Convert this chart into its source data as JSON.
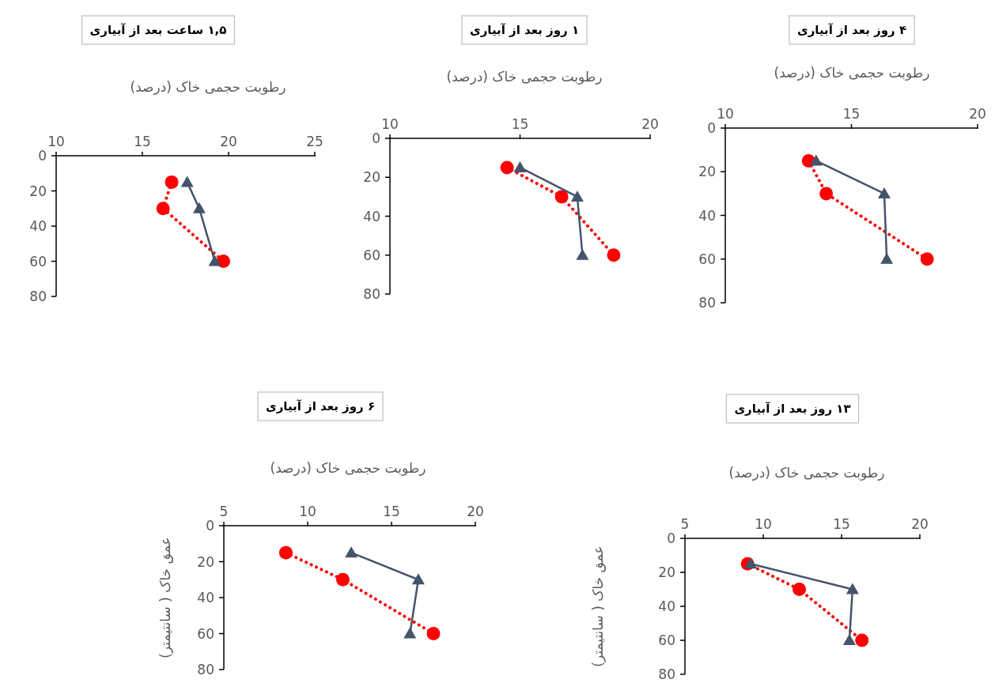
{
  "chart_data": [
    {
      "type": "line",
      "title": "۱,۵ ساعت بعد از آبیاری",
      "xlabel": "رطوبت حجمی خاک (درصد)",
      "xlim": [
        10,
        25
      ],
      "xticks": [
        10,
        15,
        20,
        25
      ],
      "ylim": [
        80,
        0
      ],
      "yticks": [
        0,
        20,
        40,
        60,
        80
      ],
      "series": [
        {
          "color": "#ff0000",
          "marker": "circle",
          "line_style": "dotted",
          "x": [
            16.7,
            16.2,
            19.7
          ],
          "values": [
            15,
            30,
            60
          ]
        },
        {
          "color": "#44546a",
          "marker": "triangle",
          "line_style": "solid",
          "x": [
            17.6,
            18.3,
            19.2
          ],
          "values": [
            15,
            30,
            60
          ]
        }
      ]
    },
    {
      "type": "line",
      "title": "۱ روز بعد از آبیاری",
      "xlabel": "رطوبت حجمی خاک (درصد)",
      "xlim": [
        10,
        20
      ],
      "xticks": [
        10,
        15,
        20
      ],
      "ylim": [
        80,
        0
      ],
      "yticks": [
        0,
        20,
        40,
        60,
        80
      ],
      "series": [
        {
          "color": "#ff0000",
          "marker": "circle",
          "line_style": "dotted",
          "x": [
            14.5,
            16.6,
            18.6
          ],
          "values": [
            15,
            30,
            60
          ]
        },
        {
          "color": "#44546a",
          "marker": "triangle",
          "line_style": "solid",
          "x": [
            15.0,
            17.2,
            17.4
          ],
          "values": [
            15,
            30,
            60
          ]
        }
      ]
    },
    {
      "type": "line",
      "title": "۴ روز بعد از آبیاری",
      "xlabel": "رطوبت حجمی خاک (درصد)",
      "xlim": [
        10,
        20
      ],
      "xticks": [
        10,
        15,
        20
      ],
      "ylim": [
        80,
        0
      ],
      "yticks": [
        0,
        20,
        40,
        60,
        80
      ],
      "series": [
        {
          "color": "#ff0000",
          "marker": "circle",
          "line_style": "dotted",
          "x": [
            13.3,
            14.0,
            18.0
          ],
          "values": [
            15,
            30,
            60
          ]
        },
        {
          "color": "#44546a",
          "marker": "triangle",
          "line_style": "solid",
          "x": [
            13.6,
            16.3,
            16.4
          ],
          "values": [
            15,
            30,
            60
          ]
        }
      ]
    },
    {
      "type": "line",
      "title": "۶ روز بعد از آبیاری",
      "xlabel": "رطوبت حجمی خاک (درصد)",
      "ylabel": "عمق خاک ( سانتیمتر)",
      "xlim": [
        5,
        20
      ],
      "xticks": [
        5,
        10,
        15,
        20
      ],
      "ylim": [
        80,
        0
      ],
      "yticks": [
        0,
        20,
        40,
        60,
        80
      ],
      "series": [
        {
          "color": "#ff0000",
          "marker": "circle",
          "line_style": "dotted",
          "x": [
            8.7,
            12.1,
            17.5
          ],
          "values": [
            15,
            30,
            60
          ]
        },
        {
          "color": "#44546a",
          "marker": "triangle",
          "line_style": "solid",
          "x": [
            12.6,
            16.6,
            16.1
          ],
          "values": [
            15,
            30,
            60
          ]
        }
      ]
    },
    {
      "type": "line",
      "title": "۱۳ روز بعد از آبیاری",
      "xlabel": "رطوبت حجمی خاک (درصد)",
      "ylabel": "عمق خاک ( سانتیمتر)",
      "xlim": [
        5,
        20
      ],
      "xticks": [
        5,
        10,
        15,
        20
      ],
      "ylim": [
        80,
        0
      ],
      "yticks": [
        0,
        20,
        40,
        60,
        80
      ],
      "series": [
        {
          "color": "#ff0000",
          "marker": "circle",
          "line_style": "dotted",
          "x": [
            9.0,
            12.3,
            16.3
          ],
          "values": [
            15,
            30,
            60
          ]
        },
        {
          "color": "#44546a",
          "marker": "triangle",
          "line_style": "solid",
          "x": [
            9.2,
            15.7,
            15.5
          ],
          "values": [
            15,
            30,
            60
          ]
        }
      ]
    }
  ]
}
